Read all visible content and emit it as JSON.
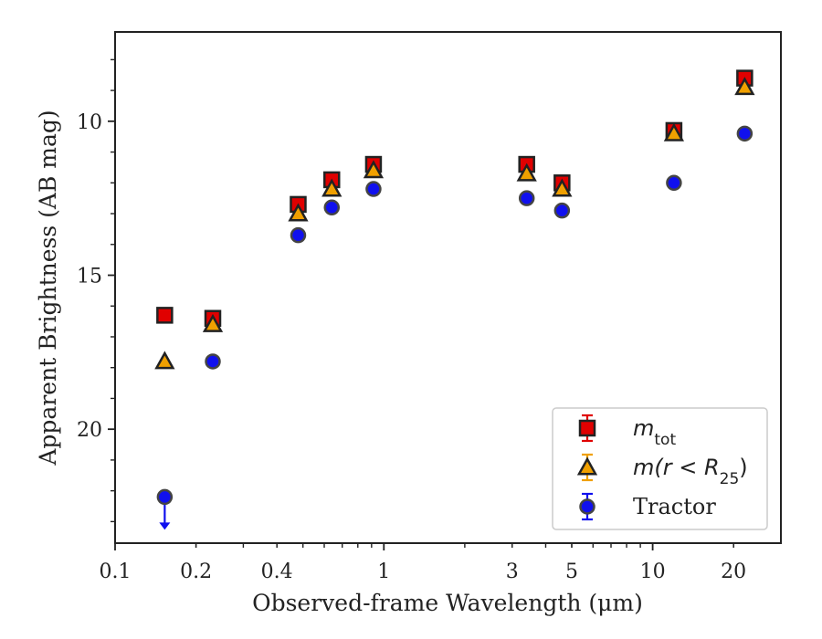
{
  "chart_data": {
    "type": "scatter",
    "title": "",
    "xlabel": "Observed-frame Wavelength (μm)",
    "ylabel": "Apparent Brightness (AB mag)",
    "x_scale": "log",
    "xlim": [
      0.1,
      30
    ],
    "ylim": [
      23.7,
      7.1
    ],
    "y_inverted": true,
    "x_ticks": [
      {
        "value": 0.1,
        "label": "0.1"
      },
      {
        "value": 0.2,
        "label": "0.2"
      },
      {
        "value": 0.4,
        "label": "0.4"
      },
      {
        "value": 1,
        "label": "1"
      },
      {
        "value": 3,
        "label": "3"
      },
      {
        "value": 5,
        "label": "5"
      },
      {
        "value": 10,
        "label": "10"
      },
      {
        "value": 20,
        "label": "20"
      }
    ],
    "y_ticks": [
      {
        "value": 10,
        "label": "10"
      },
      {
        "value": 15,
        "label": "15"
      },
      {
        "value": 20,
        "label": "20"
      }
    ],
    "grid": false,
    "legend_position": "bottom-right",
    "series": [
      {
        "name": "m_tot",
        "legend_label": {
          "base": "m",
          "sub": "tot",
          "rest": ""
        },
        "marker": "square",
        "color": "#e00000",
        "errorbar_color": "#e00000",
        "points": [
          {
            "x": 0.153,
            "y": 16.3
          },
          {
            "x": 0.231,
            "y": 16.4
          },
          {
            "x": 0.48,
            "y": 12.7
          },
          {
            "x": 0.64,
            "y": 11.9
          },
          {
            "x": 0.915,
            "y": 11.4
          },
          {
            "x": 3.4,
            "y": 11.4
          },
          {
            "x": 4.6,
            "y": 12.0
          },
          {
            "x": 12.0,
            "y": 10.3
          },
          {
            "x": 22.0,
            "y": 8.6
          }
        ]
      },
      {
        "name": "m(r < R25)",
        "legend_label": {
          "base": "m(r < R",
          "sub": "25",
          "rest": ")"
        },
        "marker": "triangle",
        "color": "#f0a000",
        "errorbar_color": "#f0a000",
        "points": [
          {
            "x": 0.153,
            "y": 17.8
          },
          {
            "x": 0.231,
            "y": 16.6
          },
          {
            "x": 0.48,
            "y": 13.0
          },
          {
            "x": 0.64,
            "y": 12.2
          },
          {
            "x": 0.915,
            "y": 11.6
          },
          {
            "x": 3.4,
            "y": 11.7
          },
          {
            "x": 4.6,
            "y": 12.2
          },
          {
            "x": 12.0,
            "y": 10.4
          },
          {
            "x": 22.0,
            "y": 8.9
          }
        ]
      },
      {
        "name": "Tractor",
        "legend_label": {
          "base": "Tractor",
          "sub": "",
          "rest": ""
        },
        "marker": "circle",
        "color": "#1010ee",
        "errorbar_color": "#1010ee",
        "points": [
          {
            "x": 0.153,
            "y": 22.2,
            "upper_limit": true
          },
          {
            "x": 0.231,
            "y": 17.8
          },
          {
            "x": 0.48,
            "y": 13.7
          },
          {
            "x": 0.64,
            "y": 12.8
          },
          {
            "x": 0.915,
            "y": 12.2
          },
          {
            "x": 3.4,
            "y": 12.5
          },
          {
            "x": 4.6,
            "y": 12.9
          },
          {
            "x": 12.0,
            "y": 12.0
          },
          {
            "x": 22.0,
            "y": 10.4
          }
        ]
      }
    ]
  }
}
